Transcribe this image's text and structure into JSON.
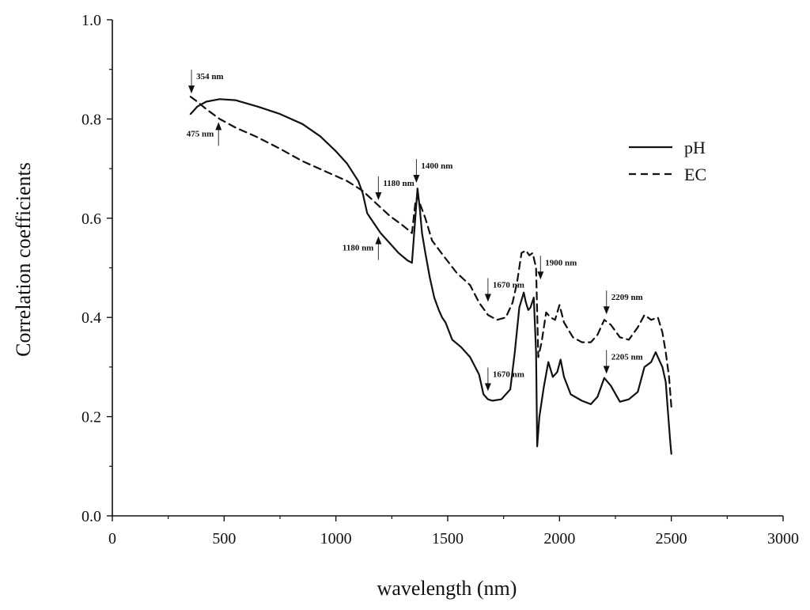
{
  "chart_data": {
    "type": "line",
    "title": "",
    "xlabel": "wavelength (nm)",
    "ylabel": "Correlation coefficients",
    "xlim": [
      0,
      3000
    ],
    "ylim": [
      0.0,
      1.0
    ],
    "xticks": [
      0,
      500,
      1000,
      1500,
      2000,
      2500,
      3000
    ],
    "xtick_labels": [
      "0",
      "500",
      "1000",
      "1500",
      "2000",
      "2500",
      "3000"
    ],
    "yticks": [
      0.0,
      0.2,
      0.4,
      0.6,
      0.8,
      1.0
    ],
    "ytick_labels": [
      "0.0",
      "0.2",
      "0.4",
      "0.6",
      "0.8",
      "1.0"
    ],
    "grid": false,
    "legend": {
      "position": "top-right",
      "entries": [
        "pH",
        "EC"
      ]
    },
    "series": [
      {
        "name": "pH",
        "style": "solid",
        "color": "#111111",
        "points": [
          [
            350,
            0.81
          ],
          [
            380,
            0.825
          ],
          [
            420,
            0.835
          ],
          [
            480,
            0.84
          ],
          [
            550,
            0.838
          ],
          [
            650,
            0.825
          ],
          [
            750,
            0.81
          ],
          [
            850,
            0.79
          ],
          [
            930,
            0.765
          ],
          [
            1000,
            0.735
          ],
          [
            1050,
            0.71
          ],
          [
            1100,
            0.675
          ],
          [
            1120,
            0.65
          ],
          [
            1140,
            0.61
          ],
          [
            1170,
            0.59
          ],
          [
            1200,
            0.57
          ],
          [
            1240,
            0.55
          ],
          [
            1280,
            0.53
          ],
          [
            1320,
            0.515
          ],
          [
            1340,
            0.51
          ],
          [
            1355,
            0.6
          ],
          [
            1365,
            0.66
          ],
          [
            1375,
            0.62
          ],
          [
            1385,
            0.57
          ],
          [
            1400,
            0.53
          ],
          [
            1420,
            0.48
          ],
          [
            1440,
            0.44
          ],
          [
            1460,
            0.415
          ],
          [
            1475,
            0.4
          ],
          [
            1490,
            0.39
          ],
          [
            1520,
            0.355
          ],
          [
            1560,
            0.34
          ],
          [
            1600,
            0.32
          ],
          [
            1640,
            0.285
          ],
          [
            1660,
            0.245
          ],
          [
            1680,
            0.235
          ],
          [
            1700,
            0.232
          ],
          [
            1740,
            0.235
          ],
          [
            1780,
            0.255
          ],
          [
            1800,
            0.33
          ],
          [
            1820,
            0.42
          ],
          [
            1840,
            0.45
          ],
          [
            1850,
            0.43
          ],
          [
            1860,
            0.415
          ],
          [
            1870,
            0.42
          ],
          [
            1885,
            0.44
          ],
          [
            1895,
            0.33
          ],
          [
            1900,
            0.14
          ],
          [
            1910,
            0.2
          ],
          [
            1930,
            0.26
          ],
          [
            1950,
            0.31
          ],
          [
            1970,
            0.28
          ],
          [
            1990,
            0.29
          ],
          [
            2005,
            0.315
          ],
          [
            2020,
            0.28
          ],
          [
            2050,
            0.245
          ],
          [
            2100,
            0.232
          ],
          [
            2140,
            0.225
          ],
          [
            2170,
            0.24
          ],
          [
            2200,
            0.278
          ],
          [
            2230,
            0.262
          ],
          [
            2270,
            0.23
          ],
          [
            2310,
            0.235
          ],
          [
            2350,
            0.25
          ],
          [
            2380,
            0.3
          ],
          [
            2410,
            0.31
          ],
          [
            2430,
            0.33
          ],
          [
            2440,
            0.32
          ],
          [
            2460,
            0.3
          ],
          [
            2475,
            0.27
          ],
          [
            2485,
            0.21
          ],
          [
            2495,
            0.15
          ],
          [
            2500,
            0.125
          ]
        ]
      },
      {
        "name": "EC",
        "style": "dashed",
        "color": "#111111",
        "points": [
          [
            350,
            0.845
          ],
          [
            380,
            0.835
          ],
          [
            420,
            0.82
          ],
          [
            480,
            0.8
          ],
          [
            550,
            0.783
          ],
          [
            650,
            0.763
          ],
          [
            750,
            0.74
          ],
          [
            850,
            0.715
          ],
          [
            950,
            0.695
          ],
          [
            1050,
            0.675
          ],
          [
            1120,
            0.655
          ],
          [
            1180,
            0.63
          ],
          [
            1240,
            0.605
          ],
          [
            1300,
            0.585
          ],
          [
            1340,
            0.57
          ],
          [
            1355,
            0.63
          ],
          [
            1365,
            0.645
          ],
          [
            1375,
            0.63
          ],
          [
            1400,
            0.6
          ],
          [
            1430,
            0.555
          ],
          [
            1480,
            0.525
          ],
          [
            1540,
            0.49
          ],
          [
            1600,
            0.465
          ],
          [
            1640,
            0.43
          ],
          [
            1680,
            0.405
          ],
          [
            1720,
            0.395
          ],
          [
            1760,
            0.4
          ],
          [
            1790,
            0.43
          ],
          [
            1810,
            0.47
          ],
          [
            1830,
            0.53
          ],
          [
            1850,
            0.535
          ],
          [
            1865,
            0.525
          ],
          [
            1880,
            0.53
          ],
          [
            1895,
            0.5
          ],
          [
            1905,
            0.32
          ],
          [
            1920,
            0.35
          ],
          [
            1940,
            0.41
          ],
          [
            1960,
            0.4
          ],
          [
            1980,
            0.395
          ],
          [
            2000,
            0.425
          ],
          [
            2020,
            0.39
          ],
          [
            2060,
            0.36
          ],
          [
            2100,
            0.35
          ],
          [
            2140,
            0.35
          ],
          [
            2170,
            0.365
          ],
          [
            2200,
            0.395
          ],
          [
            2230,
            0.385
          ],
          [
            2270,
            0.36
          ],
          [
            2310,
            0.355
          ],
          [
            2350,
            0.38
          ],
          [
            2380,
            0.405
          ],
          [
            2410,
            0.395
          ],
          [
            2440,
            0.4
          ],
          [
            2460,
            0.37
          ],
          [
            2475,
            0.33
          ],
          [
            2490,
            0.28
          ],
          [
            2500,
            0.22
          ]
        ]
      }
    ],
    "annotations": [
      {
        "text": "354 nm",
        "x": 354,
        "y": 0.845,
        "arrow": "down",
        "side": "right"
      },
      {
        "text": "475 nm",
        "x": 475,
        "y": 0.8,
        "arrow": "up",
        "side": "left"
      },
      {
        "text": "1180 nm",
        "x": 1190,
        "y": 0.63,
        "arrow": "down",
        "side": "right"
      },
      {
        "text": "1180 nm",
        "x": 1190,
        "y": 0.57,
        "arrow": "up",
        "side": "left"
      },
      {
        "text": "1400 nm",
        "x": 1360,
        "y": 0.665,
        "arrow": "down",
        "side": "right"
      },
      {
        "text": "1670 nm",
        "x": 1680,
        "y": 0.425,
        "arrow": "down",
        "side": "right"
      },
      {
        "text": "1670 nm",
        "x": 1680,
        "y": 0.245,
        "arrow": "down",
        "side": "right"
      },
      {
        "text": "1900 nm",
        "x": 1915,
        "y": 0.47,
        "arrow": "down",
        "side": "right"
      },
      {
        "text": "2209 nm",
        "x": 2210,
        "y": 0.4,
        "arrow": "down",
        "side": "right"
      },
      {
        "text": "2205 nm",
        "x": 2210,
        "y": 0.28,
        "arrow": "down",
        "side": "right"
      }
    ]
  }
}
